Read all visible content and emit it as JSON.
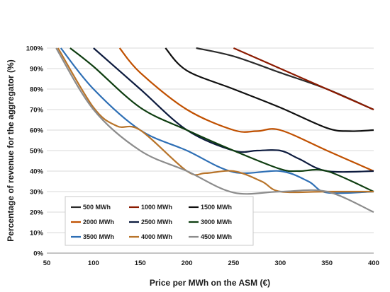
{
  "chart_data": {
    "type": "line",
    "title": "",
    "xlabel": "Price per MWh on the ASM (€)",
    "ylabel": "Percentage of revenue for the aggregator (%)",
    "xlim": [
      50,
      400
    ],
    "ylim": [
      0,
      100
    ],
    "x_ticks": [
      "50",
      "100",
      "150",
      "200",
      "250",
      "300",
      "350",
      "400"
    ],
    "y_ticks": [
      "0%",
      "10%",
      "20%",
      "30%",
      "40%",
      "50%",
      "60%",
      "70%",
      "80%",
      "90%",
      "100%"
    ],
    "grid": "horizontal",
    "legend_position": "bottom-left",
    "series": [
      {
        "name": "500 MWh",
        "color": "#2b2b2b",
        "x": [
          210,
          250,
          300,
          350,
          400
        ],
        "y": [
          100,
          96,
          88,
          80,
          70
        ]
      },
      {
        "name": "1000 MWh",
        "color": "#8b1a00",
        "x": [
          250,
          300,
          350,
          400
        ],
        "y": [
          100,
          90,
          80,
          70
        ]
      },
      {
        "name": "1500 MWh",
        "color": "#101010",
        "x": [
          177,
          200,
          250,
          300,
          350,
          375,
          400
        ],
        "y": [
          100,
          89,
          80,
          71,
          61,
          59.5,
          60
        ]
      },
      {
        "name": "2000 MWh",
        "color": "#c05000",
        "x": [
          128,
          150,
          200,
          250,
          275,
          300,
          350,
          400
        ],
        "y": [
          100,
          88,
          70,
          60,
          59.5,
          60,
          50,
          40
        ]
      },
      {
        "name": "2500 MWh",
        "color": "#0d1b3e",
        "x": [
          100,
          150,
          200,
          250,
          275,
          300,
          320,
          350,
          400
        ],
        "y": [
          100,
          80,
          60,
          50,
          50,
          50,
          46,
          40,
          40
        ]
      },
      {
        "name": "3000 MWh",
        "color": "#0e3d10",
        "x": [
          75,
          100,
          150,
          200,
          250,
          300,
          320,
          350,
          400
        ],
        "y": [
          100,
          91,
          71,
          60,
          50,
          41,
          40,
          40,
          30
        ]
      },
      {
        "name": "3500 MWh",
        "color": "#2e6fb5",
        "x": [
          65,
          100,
          150,
          200,
          250,
          300,
          330,
          350,
          400
        ],
        "y": [
          100,
          80,
          60,
          50,
          39.5,
          40,
          35,
          29.5,
          30
        ]
      },
      {
        "name": "4000 MWh",
        "color": "#b8742a",
        "x": [
          62,
          100,
          125,
          150,
          200,
          220,
          250,
          280,
          300,
          350,
          400
        ],
        "y": [
          100,
          71,
          62,
          60,
          40,
          39,
          40,
          35,
          30,
          30,
          30
        ]
      },
      {
        "name": "4500 MWh",
        "color": "#8c8c8c",
        "x": [
          60,
          100,
          150,
          200,
          250,
          300,
          350,
          400
        ],
        "y": [
          100,
          70,
          50,
          40,
          29.5,
          30,
          30,
          20
        ]
      }
    ]
  }
}
